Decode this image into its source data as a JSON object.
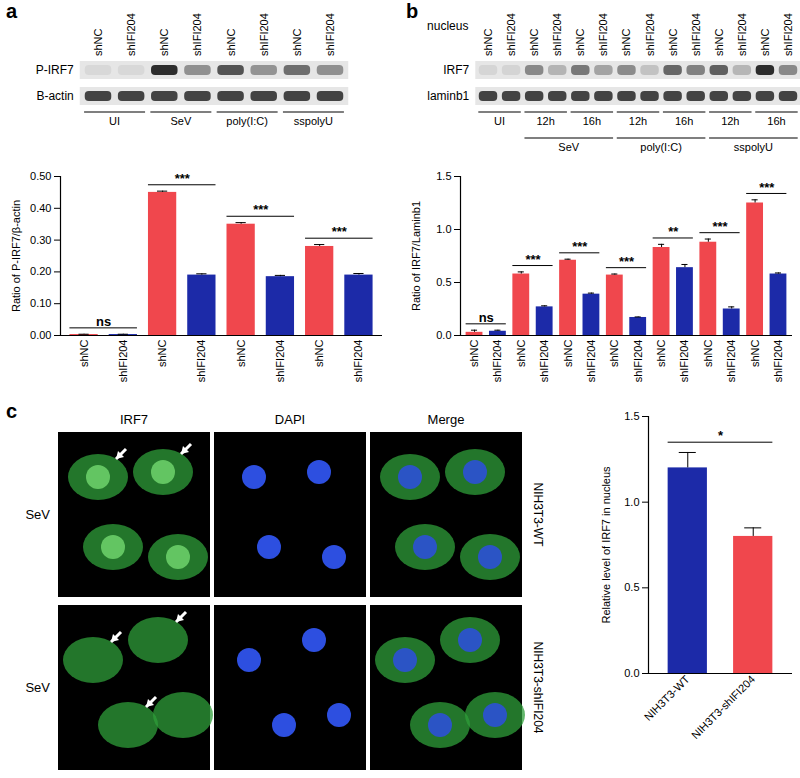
{
  "chart_data": [
    {
      "type": "bar",
      "categories": [
        "shNC",
        "shIFI204",
        "shNC",
        "shIFI204",
        "shNC",
        "shIFI204",
        "shNC",
        "shIFI204"
      ],
      "values": [
        0.003,
        0.003,
        0.45,
        0.19,
        0.35,
        0.185,
        0.28,
        0.19
      ],
      "errors": [
        0.001,
        0.001,
        0.004,
        0.004,
        0.005,
        0.004,
        0.006,
        0.005
      ],
      "colors": [
        "#f0474d",
        "#1c2aa8",
        "#f0474d",
        "#1c2aa8",
        "#f0474d",
        "#1c2aa8",
        "#f0474d",
        "#1c2aa8"
      ],
      "y_label": "Ratio of P-IRF7/β-actin",
      "ylim": [
        0,
        0.5
      ],
      "yticks": [
        0,
        0.1,
        0.2,
        0.3,
        0.4,
        0.5
      ],
      "annotations": [
        {
          "text": "ns",
          "between": [
            0,
            1
          ]
        },
        {
          "text": "***",
          "between": [
            2,
            3
          ]
        },
        {
          "text": "***",
          "between": [
            4,
            5
          ]
        },
        {
          "text": "***",
          "between": [
            6,
            7
          ]
        }
      ]
    },
    {
      "type": "bar",
      "categories": [
        "shNC",
        "shIFI204",
        "shNC",
        "shIFI204",
        "shNC",
        "shIFI204",
        "shNC",
        "shIFI204",
        "shNC",
        "shIFI204",
        "shNC",
        "shIFI204",
        "shNC",
        "shIFI204"
      ],
      "values": [
        0.03,
        0.04,
        0.58,
        0.27,
        0.71,
        0.39,
        0.57,
        0.17,
        0.83,
        0.64,
        0.88,
        0.25,
        1.25,
        0.58
      ],
      "errors": [
        0.02,
        0.01,
        0.02,
        0.01,
        0.01,
        0.01,
        0.01,
        0.005,
        0.03,
        0.03,
        0.03,
        0.02,
        0.03,
        0.01
      ],
      "colors": [
        "#f0474d",
        "#1c2aa8",
        "#f0474d",
        "#1c2aa8",
        "#f0474d",
        "#1c2aa8",
        "#f0474d",
        "#1c2aa8",
        "#f0474d",
        "#1c2aa8",
        "#f0474d",
        "#1c2aa8",
        "#f0474d",
        "#1c2aa8"
      ],
      "y_label": "Ratio of IRF7/Laminb1",
      "ylim": [
        0,
        1.5
      ],
      "yticks": [
        0,
        0.5,
        1,
        1.5
      ],
      "annotations": [
        {
          "text": "ns",
          "between": [
            0,
            1
          ]
        },
        {
          "text": "***",
          "between": [
            2,
            3
          ]
        },
        {
          "text": "***",
          "between": [
            4,
            5
          ]
        },
        {
          "text": "***",
          "between": [
            6,
            7
          ]
        },
        {
          "text": "**",
          "between": [
            8,
            9
          ]
        },
        {
          "text": "***",
          "between": [
            10,
            11
          ]
        },
        {
          "text": "***",
          "between": [
            12,
            13
          ]
        }
      ]
    },
    {
      "type": "bar",
      "categories": [
        "NIH3T3-WT",
        "NIH3T3-shIFI204"
      ],
      "values": [
        1.2,
        0.8
      ],
      "errors": [
        0.09,
        0.05
      ],
      "colors": [
        "#1c2aa8",
        "#f0474d"
      ],
      "y_label": "Relative level of IRF7 in nucleus",
      "ylim": [
        0,
        1.5
      ],
      "yticks": [
        0,
        0.5,
        1,
        1.5
      ],
      "annotations": [
        {
          "text": "*",
          "between": [
            0,
            1
          ]
        }
      ]
    }
  ],
  "panels": [
    {
      "label": "a",
      "blot": {
        "lanes": [
          "shNC",
          "shIFI204",
          "shNC",
          "shIFI204",
          "shNC",
          "shIFI204",
          "shNC",
          "shIFI204"
        ],
        "rows": [
          "P-IRF7",
          "B-actin"
        ],
        "groups": [
          {
            "label": "UI",
            "span": 2
          },
          {
            "label": "SeV",
            "span": 2
          },
          {
            "label": "poly(I:C)",
            "span": 2
          },
          {
            "label": "sspolyU",
            "span": 2
          }
        ]
      }
    },
    {
      "label": "b",
      "blot": {
        "caption": "nucleus",
        "lanes": [
          "shNC",
          "shIFI204",
          "shNC",
          "shIFI204",
          "shNC",
          "shIFI204",
          "shNC",
          "shIFI204",
          "shNC",
          "shIFI204",
          "shNC",
          "shIFI204",
          "shNC",
          "shIFI204"
        ],
        "rows": [
          "IRF7",
          "laminb1"
        ],
        "groups": [
          {
            "label": "UI",
            "span": 2
          },
          {
            "label": "SeV",
            "span": 4,
            "sub": [
              {
                "label": "12h",
                "span": 2
              },
              {
                "label": "16h",
                "span": 2
              }
            ]
          },
          {
            "label": "poly(I:C)",
            "span": 4,
            "sub": [
              {
                "label": "12h",
                "span": 2
              },
              {
                "label": "16h",
                "span": 2
              }
            ]
          },
          {
            "label": "sspolyU",
            "span": 4,
            "sub": [
              {
                "label": "12h",
                "span": 2
              },
              {
                "label": "16h",
                "span": 2
              }
            ]
          }
        ]
      }
    },
    {
      "label": "c",
      "images": {
        "columns": [
          "IRF7",
          "DAPI",
          "Merge"
        ],
        "rows": [
          "SeV",
          "SeV"
        ],
        "side_labels": [
          "NIH3T3-WT",
          "NIH3T3-shIFI204"
        ]
      }
    }
  ]
}
